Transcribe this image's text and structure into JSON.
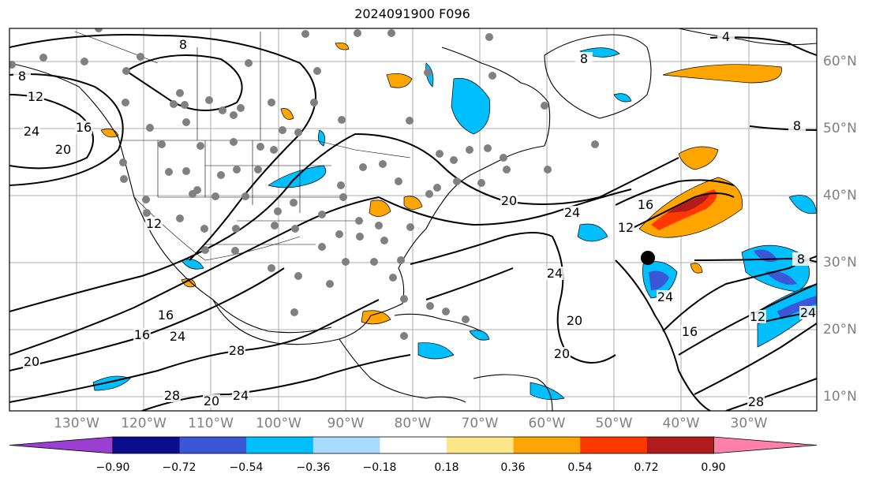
{
  "title": "2024091900 F096",
  "lon_labels": [
    "130°W",
    "120°W",
    "110°W",
    "100°W",
    "90°W",
    "80°W",
    "70°W",
    "60°W",
    "50°W",
    "40°W",
    "30°W"
  ],
  "lat_labels": [
    "60°N",
    "50°N",
    "40°N",
    "30°N",
    "20°N",
    "10°N"
  ],
  "contour_labels": [
    "8",
    "8",
    "12",
    "16",
    "24",
    "20",
    "4",
    "8",
    "8",
    "12",
    "20",
    "24",
    "16",
    "12",
    "8",
    "24",
    "20",
    "16",
    "24",
    "28",
    "20",
    "28",
    "24",
    "20",
    "20",
    "16",
    "24",
    "24",
    "28",
    "16",
    "12"
  ],
  "colorbar": {
    "ticks": [
      "−0.90",
      "−0.72",
      "−0.54",
      "−0.36",
      "−0.18",
      "0.18",
      "0.36",
      "0.54",
      "0.72",
      "0.90"
    ],
    "colors": [
      "#9a3fd1",
      "#0c0f8c",
      "#3a57d8",
      "#00bfff",
      "#a8dcff",
      "#ffffff",
      "#fde68a",
      "#ffa500",
      "#ff3800",
      "#b01c1c",
      "#ff80aa"
    ],
    "under_color": "#9a3fd1",
    "over_color": "#ff80aa"
  },
  "map_colors": {
    "neg_fill": "#00bfff",
    "neg_strong": "#3a57d8",
    "pos_fill": "#ffa500",
    "pos_strong": "#ff3800",
    "pos_max": "#b01c1c",
    "station_dot": "#808080",
    "marker": "#000000"
  }
}
